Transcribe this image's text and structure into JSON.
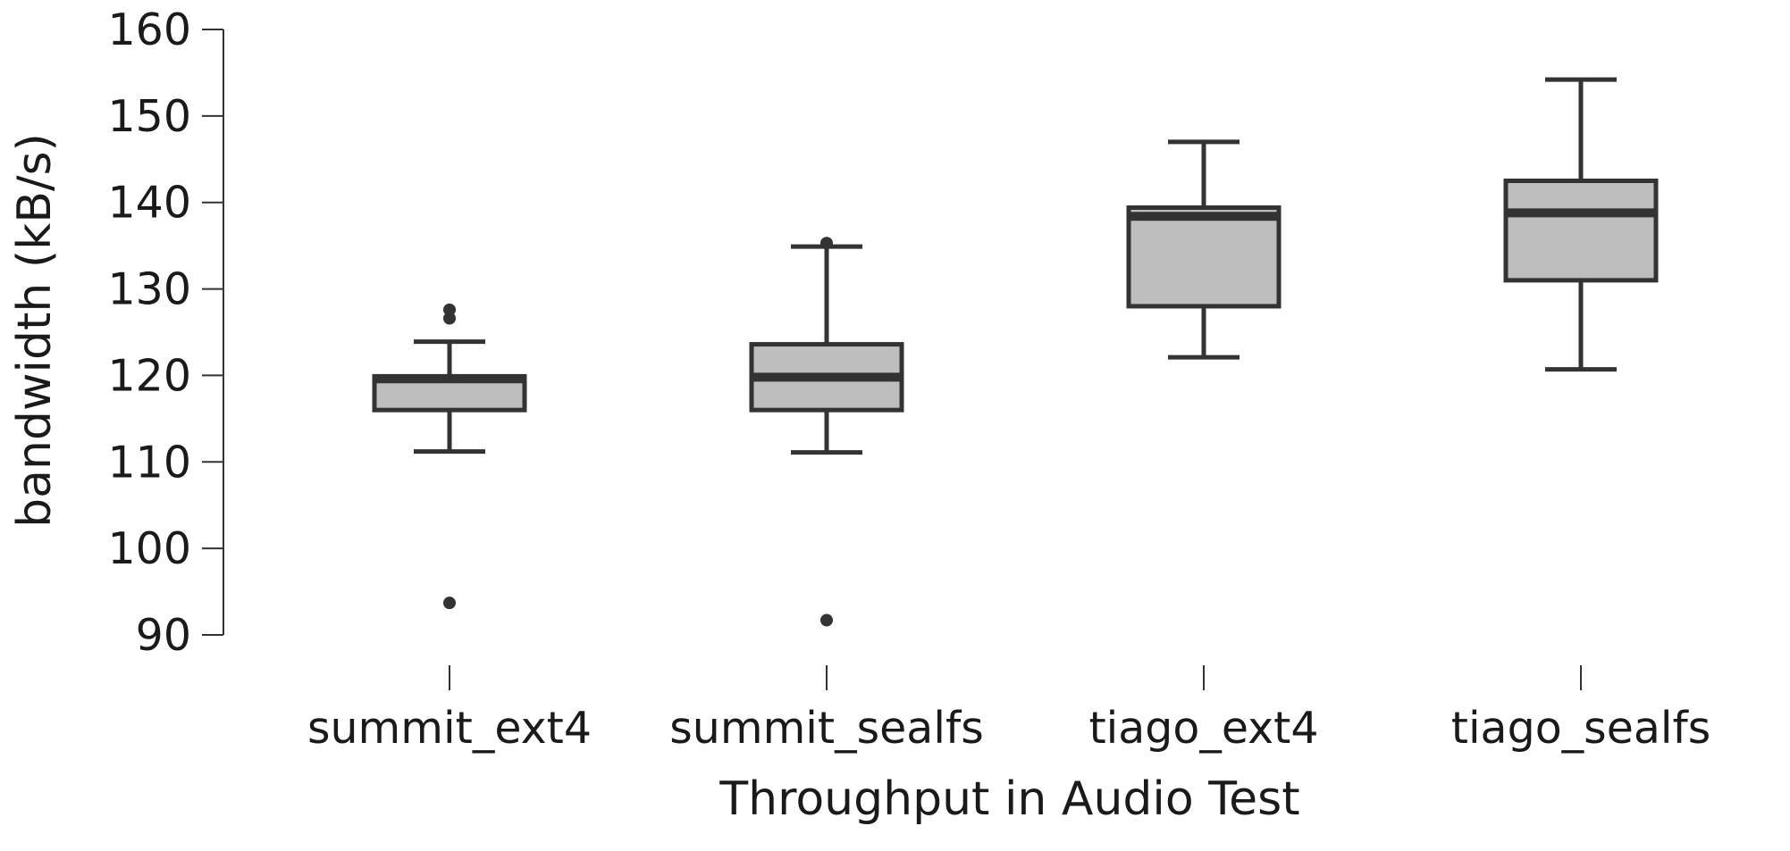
{
  "chart_data": {
    "type": "box",
    "title": "",
    "xlabel": "Throughput in Audio Test",
    "ylabel": "bandwidth (kB/s)",
    "ylim": [
      90,
      160
    ],
    "yticks": [
      90,
      100,
      110,
      120,
      130,
      140,
      150,
      160
    ],
    "grid": false,
    "categories": [
      "summit_ext4",
      "summit_sealfs",
      "tiago_ext4",
      "tiago_sealfs"
    ],
    "boxes": [
      {
        "category": "summit_ext4",
        "whisker_low": 111.2,
        "q1": 116.0,
        "median": 119.6,
        "q3": 119.9,
        "whisker_high": 123.9,
        "outliers": [
          93.7,
          126.6,
          127.6
        ]
      },
      {
        "category": "summit_sealfs",
        "whisker_low": 111.1,
        "q1": 116.0,
        "median": 119.8,
        "q3": 123.6,
        "whisker_high": 134.9,
        "outliers": [
          91.7,
          135.3
        ]
      },
      {
        "category": "tiago_ext4",
        "whisker_low": 122.1,
        "q1": 128.0,
        "median": 138.4,
        "q3": 139.4,
        "whisker_high": 147.0,
        "outliers": []
      },
      {
        "category": "tiago_sealfs",
        "whisker_low": 120.7,
        "q1": 131.0,
        "median": 138.8,
        "q3": 142.5,
        "whisker_high": 154.2,
        "outliers": []
      }
    ],
    "colors": {
      "box_fill": "#bebebe",
      "box_stroke": "#333333",
      "median": "#333333",
      "outlier": "#333333"
    }
  }
}
